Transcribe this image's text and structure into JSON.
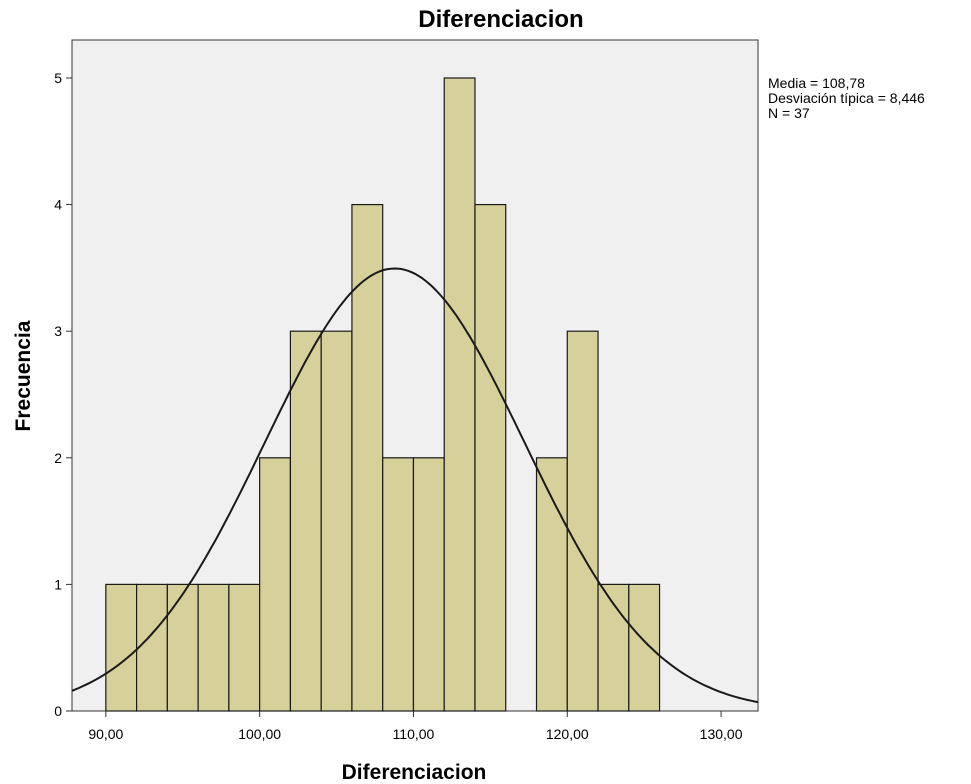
{
  "chart_data": {
    "type": "bar",
    "title": "Diferenciacion",
    "xlabel": "Diferenciacion",
    "ylabel": "Frecuencia",
    "xlim": [
      87.8,
      132.4
    ],
    "ylim": [
      0,
      5.3
    ],
    "xticks": [
      90,
      100,
      110,
      120,
      130
    ],
    "xtick_labels": [
      "90,00",
      "100,00",
      "110,00",
      "120,00",
      "130,00"
    ],
    "yticks": [
      0,
      1,
      2,
      3,
      4,
      5
    ],
    "ytick_labels": [
      "0",
      "1",
      "2",
      "3",
      "4",
      "5"
    ],
    "bin_width": 2,
    "bins": [
      {
        "start": 90,
        "count": 1
      },
      {
        "start": 92,
        "count": 1
      },
      {
        "start": 94,
        "count": 1
      },
      {
        "start": 96,
        "count": 1
      },
      {
        "start": 98,
        "count": 1
      },
      {
        "start": 100,
        "count": 2
      },
      {
        "start": 102,
        "count": 3
      },
      {
        "start": 104,
        "count": 3
      },
      {
        "start": 106,
        "count": 4
      },
      {
        "start": 108,
        "count": 2
      },
      {
        "start": 110,
        "count": 2
      },
      {
        "start": 112,
        "count": 5
      },
      {
        "start": 114,
        "count": 4
      },
      {
        "start": 116,
        "count": 0
      },
      {
        "start": 118,
        "count": 2
      },
      {
        "start": 120,
        "count": 3
      },
      {
        "start": 122,
        "count": 1
      },
      {
        "start": 124,
        "count": 1
      }
    ],
    "normal_curve": {
      "mean": 108.78,
      "sd": 8.446,
      "n": 37
    },
    "stats_text": [
      "Media = 108,78",
      "Desviación típica = 8,446",
      "N = 37"
    ],
    "grid": false,
    "colors": {
      "bar_fill": "#d6d09a",
      "bar_stroke": "#1a1a1a",
      "plot_bg": "#f0f0f0",
      "curve": "#1a1a1a"
    }
  }
}
